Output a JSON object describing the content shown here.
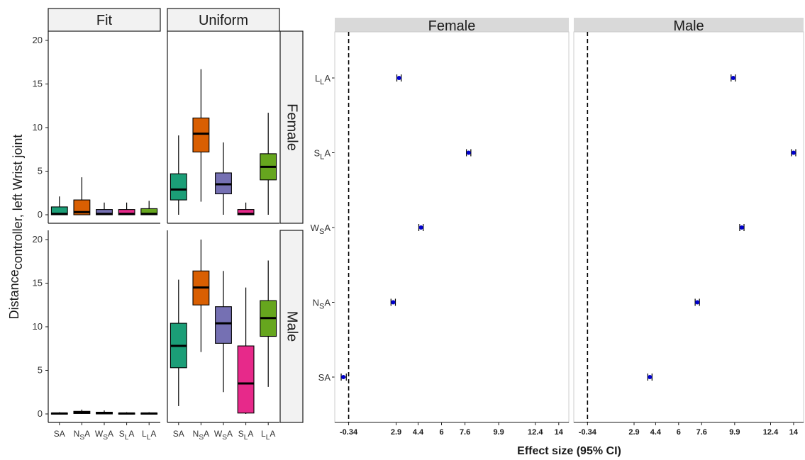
{
  "chart_data": [
    {
      "type": "boxplot",
      "ylabel_main": "Distance",
      "ylabel_sub": "controller, left Wrist joint",
      "ylim": [
        0,
        20
      ],
      "yticks": [
        0,
        5,
        10,
        15,
        20
      ],
      "columns": [
        "Fit",
        "Uniform"
      ],
      "rows": [
        "Female",
        "Male"
      ],
      "categories": [
        {
          "base": "S",
          "sub": "",
          "tail": "A"
        },
        {
          "base": "N",
          "sub": "S",
          "tail": "A"
        },
        {
          "base": "W",
          "sub": "S",
          "tail": "A"
        },
        {
          "base": "S",
          "sub": "L",
          "tail": "A"
        },
        {
          "base": "L",
          "sub": "L",
          "tail": "A"
        }
      ],
      "colors": [
        "#1b9e77",
        "#d95f02",
        "#7570b3",
        "#e7298a",
        "#66a61e"
      ],
      "panels": [
        {
          "row": "Female",
          "col": "Fit",
          "boxes": [
            {
              "min": 0,
              "q1": 0,
              "median": 0.1,
              "q3": 0.9,
              "max": 2.1
            },
            {
              "min": 0,
              "q1": 0,
              "median": 0.3,
              "q3": 1.7,
              "max": 4.3
            },
            {
              "min": 0,
              "q1": 0,
              "median": 0.1,
              "q3": 0.6,
              "max": 1.4
            },
            {
              "min": 0,
              "q1": 0,
              "median": 0.1,
              "q3": 0.6,
              "max": 1.4
            },
            {
              "min": 0,
              "q1": 0,
              "median": 0.1,
              "q3": 0.7,
              "max": 1.6
            }
          ]
        },
        {
          "row": "Female",
          "col": "Uniform",
          "boxes": [
            {
              "min": 0,
              "q1": 1.7,
              "median": 2.9,
              "q3": 4.7,
              "max": 9.1
            },
            {
              "min": 1.5,
              "q1": 7.2,
              "median": 9.3,
              "q3": 11.1,
              "max": 16.7
            },
            {
              "min": 0,
              "q1": 2.4,
              "median": 3.5,
              "q3": 4.8,
              "max": 8.3
            },
            {
              "min": 0,
              "q1": 0,
              "median": 0.1,
              "q3": 0.6,
              "max": 1.4
            },
            {
              "min": 0,
              "q1": 4.0,
              "median": 5.5,
              "q3": 7.0,
              "max": 11.7
            }
          ]
        },
        {
          "row": "Male",
          "col": "Fit",
          "boxes": [
            {
              "min": 0,
              "q1": 0,
              "median": 0.05,
              "q3": 0.1,
              "max": 0.2
            },
            {
              "min": 0,
              "q1": 0.05,
              "median": 0.15,
              "q3": 0.3,
              "max": 0.5
            },
            {
              "min": 0,
              "q1": 0,
              "median": 0.1,
              "q3": 0.2,
              "max": 0.4
            },
            {
              "min": 0,
              "q1": 0,
              "median": 0.05,
              "q3": 0.1,
              "max": 0.2
            },
            {
              "min": 0,
              "q1": 0,
              "median": 0.05,
              "q3": 0.1,
              "max": 0.2
            }
          ]
        },
        {
          "row": "Male",
          "col": "Uniform",
          "boxes": [
            {
              "min": 0.9,
              "q1": 5.3,
              "median": 7.8,
              "q3": 10.4,
              "max": 15.4
            },
            {
              "min": 7.1,
              "q1": 12.5,
              "median": 14.5,
              "q3": 16.4,
              "max": 20
            },
            {
              "min": 2.5,
              "q1": 8.1,
              "median": 10.4,
              "q3": 12.3,
              "max": 16.4
            },
            {
              "min": 0,
              "q1": 0.1,
              "median": 3.5,
              "q3": 7.8,
              "max": 14.5
            },
            {
              "min": 3.1,
              "q1": 8.9,
              "median": 11.0,
              "q3": 13.0,
              "max": 17.6
            }
          ]
        }
      ]
    },
    {
      "type": "forest",
      "xlabel": "Effect size (95% CI)",
      "xticks": [
        "-0.34",
        "2.9",
        "4.4",
        "6",
        "7.6",
        "9.9",
        "12.4",
        "14"
      ],
      "xlim": [
        -0.9,
        14.3
      ],
      "reference_line": -0.34,
      "panels": [
        "Female",
        "Male"
      ],
      "categories": [
        {
          "base": "L",
          "sub": "L",
          "tail": "A"
        },
        {
          "base": "S",
          "sub": "L",
          "tail": "A"
        },
        {
          "base": "W",
          "sub": "S",
          "tail": "A"
        },
        {
          "base": "N",
          "sub": "S",
          "tail": "A"
        },
        {
          "base": "S",
          "sub": "",
          "tail": "A"
        }
      ],
      "point_color": "#0000cc",
      "series": [
        {
          "name": "Female",
          "values": [
            {
              "est": 3.1,
              "lo": 2.95,
              "hi": 3.25
            },
            {
              "est": 7.85,
              "lo": 7.7,
              "hi": 8.0
            },
            {
              "est": 4.6,
              "lo": 4.45,
              "hi": 4.75
            },
            {
              "est": 2.7,
              "lo": 2.55,
              "hi": 2.85
            },
            {
              "est": -0.7,
              "lo": -0.85,
              "hi": -0.5
            }
          ]
        },
        {
          "name": "Male",
          "values": [
            {
              "est": 9.8,
              "lo": 9.65,
              "hi": 9.95
            },
            {
              "est": 14.0,
              "lo": 13.85,
              "hi": 14.15
            },
            {
              "est": 10.4,
              "lo": 10.25,
              "hi": 10.55
            },
            {
              "est": 7.3,
              "lo": 7.15,
              "hi": 7.45
            },
            {
              "est": 4.0,
              "lo": 3.85,
              "hi": 4.15
            }
          ]
        }
      ]
    }
  ]
}
